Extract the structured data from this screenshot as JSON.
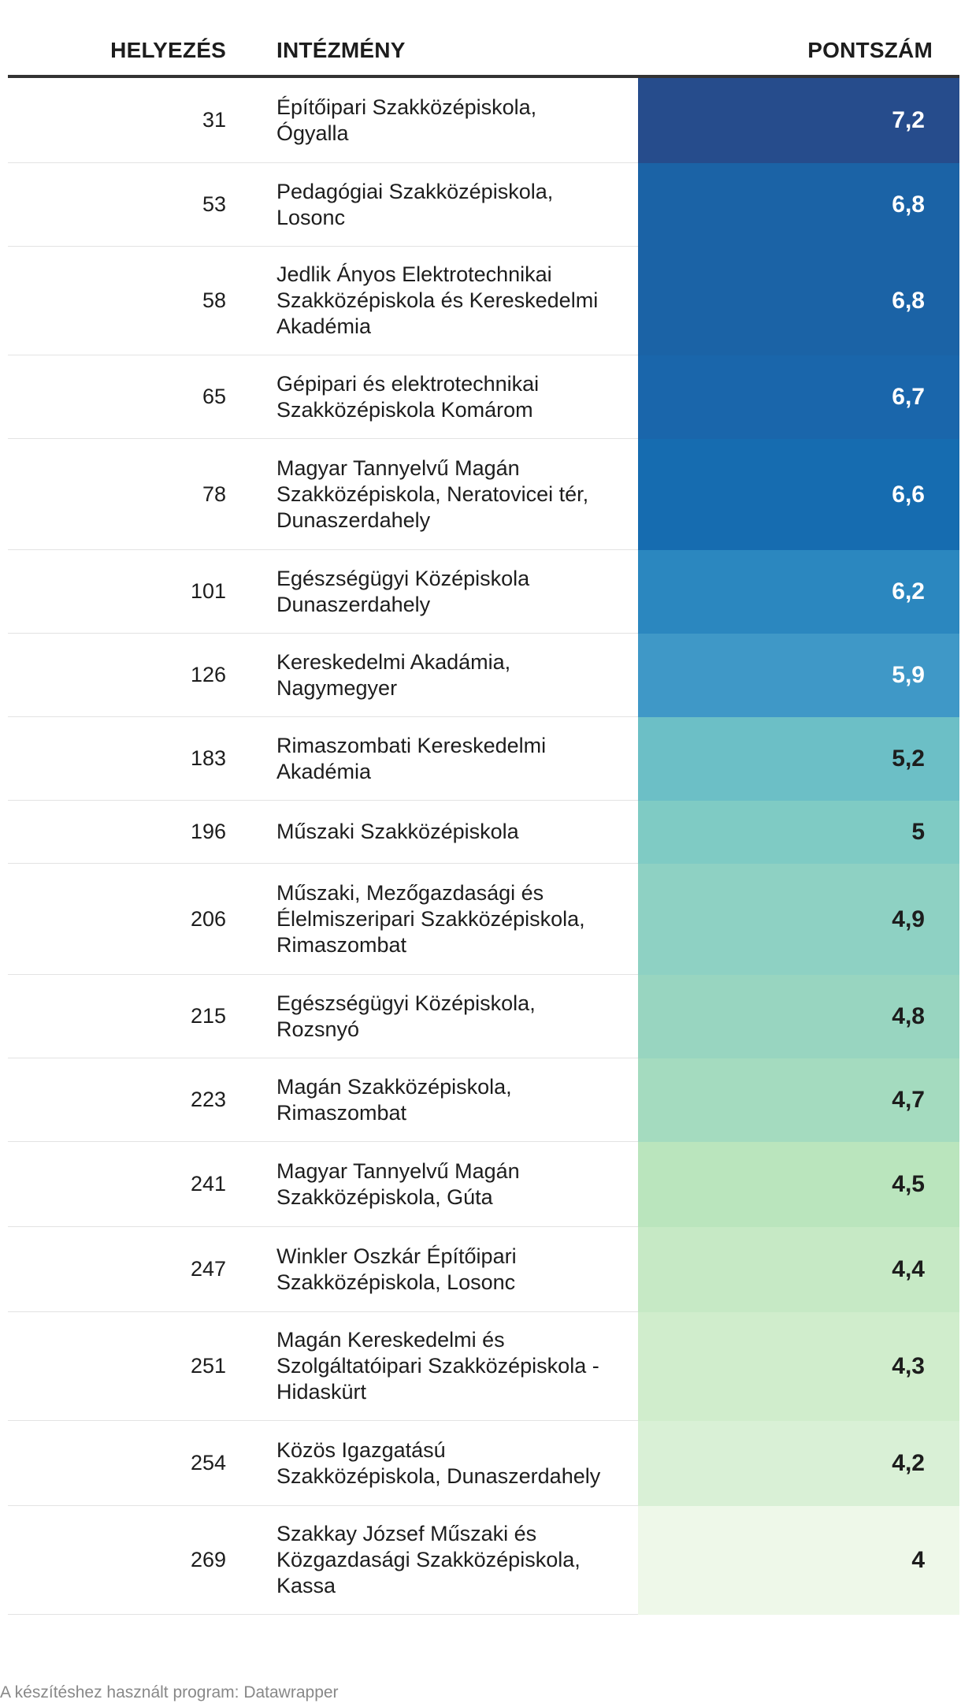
{
  "table": {
    "headers": {
      "rank": "HELYEZÉS",
      "institution": "INTÉZMÉNY",
      "score": "PONTSZÁM"
    },
    "rows": [
      {
        "rank": "31",
        "institution": [
          "Építőipari Szakközépiskola,",
          "Ógyalla"
        ],
        "score": "7,2",
        "bg": "#264c8c",
        "fg": "#ffffff"
      },
      {
        "rank": "53",
        "institution": [
          "Pedagógiai Szakközépiskola,",
          "Losonc"
        ],
        "score": "6,8",
        "bg": "#1b63a6",
        "fg": "#ffffff"
      },
      {
        "rank": "58",
        "institution": [
          "Jedlik Ányos Elektrotechnikai",
          "Szakközépiskola és Kereskedelmi",
          "Akadémia"
        ],
        "score": "6,8",
        "bg": "#1b63a6",
        "fg": "#ffffff"
      },
      {
        "rank": "65",
        "institution": [
          "Gépipari és elektrotechnikai",
          "Szakközépiskola Komárom"
        ],
        "score": "6,7",
        "bg": "#1a66ab",
        "fg": "#ffffff"
      },
      {
        "rank": "78",
        "institution": [
          "Magyar Tannyelvű Magán",
          "Szakközépiskola, Neratovicei tér,",
          "Dunaszerdahely"
        ],
        "score": "6,6",
        "bg": "#166cb0",
        "fg": "#ffffff"
      },
      {
        "rank": "101",
        "institution": [
          "Egészségügyi Középiskola",
          "Dunaszerdahely"
        ],
        "score": "6,2",
        "bg": "#2b87bf",
        "fg": "#ffffff"
      },
      {
        "rank": "126",
        "institution": [
          "Kereskedelmi Akadámia,",
          "Nagymegyer"
        ],
        "score": "5,9",
        "bg": "#3f98c7",
        "fg": "#ffffff"
      },
      {
        "rank": "183",
        "institution": [
          "Rimaszombati Kereskedelmi",
          "Akadémia"
        ],
        "score": "5,2",
        "bg": "#6cbfc6",
        "fg": "#1d1d1d"
      },
      {
        "rank": "196",
        "institution": [
          "Műszaki Szakközépiskola"
        ],
        "score": "5",
        "bg": "#7fcbc4",
        "fg": "#1d1d1d"
      },
      {
        "rank": "206",
        "institution": [
          "Műszaki, Mezőgazdasági és",
          "Élelmiszeripari Szakközépiskola,",
          "Rimaszombat"
        ],
        "score": "4,9",
        "bg": "#8ed1c3",
        "fg": "#1d1d1d"
      },
      {
        "rank": "215",
        "institution": [
          "Egészségügyi Középiskola,",
          "Rozsnyó"
        ],
        "score": "4,8",
        "bg": "#98d5c0",
        "fg": "#1d1d1d"
      },
      {
        "rank": "223",
        "institution": [
          "Magán Szakközépiskola,",
          "Rimaszombat"
        ],
        "score": "4,7",
        "bg": "#a4dbbf",
        "fg": "#1d1d1d"
      },
      {
        "rank": "241",
        "institution": [
          "Magyar Tannyelvű Magán",
          "Szakközépiskola, Gúta"
        ],
        "score": "4,5",
        "bg": "#bae5bd",
        "fg": "#1d1d1d"
      },
      {
        "rank": "247",
        "institution": [
          "Winkler Oszkár Építőipari",
          "Szakközépiskola, Losonc"
        ],
        "score": "4,4",
        "bg": "#c6e9c5",
        "fg": "#1d1d1d"
      },
      {
        "rank": "251",
        "institution": [
          "Magán Kereskedelmi és",
          "Szolgáltatóipari Szakközépiskola -",
          "Hidaskürt"
        ],
        "score": "4,3",
        "bg": "#d0edcc",
        "fg": "#1d1d1d"
      },
      {
        "rank": "254",
        "institution": [
          "Közös Igazgatású",
          "Szakközépiskola, Dunaszerdahely"
        ],
        "score": "4,2",
        "bg": "#d9f0d6",
        "fg": "#1d1d1d"
      },
      {
        "rank": "269",
        "institution": [
          "Szakkay József Műszaki és",
          "Közgazdasági Szakközépiskola,",
          "Kassa"
        ],
        "score": "4",
        "bg": "#eef8e9",
        "fg": "#1d1d1d"
      }
    ]
  },
  "chart_data": {
    "type": "table",
    "title": "",
    "columns": [
      "HELYEZÉS",
      "INTÉZMÉNY",
      "PONTSZÁM"
    ],
    "categories": [
      "Építőipari Szakközépiskola, Ógyalla",
      "Pedagógiai Szakközépiskola, Losonc",
      "Jedlik Ányos Elektrotechnikai Szakközépiskola és Kereskedelmi Akadémia",
      "Gépipari és elektrotechnikai Szakközépiskola Komárom",
      "Magyar Tannyelvű Magán Szakközépiskola, Neratovicei tér, Dunaszerdahely",
      "Egészségügyi Középiskola Dunaszerdahely",
      "Kereskedelmi Akadámia, Nagymegyer",
      "Rimaszombati Kereskedelmi Akadémia",
      "Műszaki Szakközépiskola",
      "Műszaki, Mezőgazdasági és Élelmiszeripari Szakközépiskola, Rimaszombat",
      "Egészségügyi Középiskola, Rozsnyó",
      "Magán Szakközépiskola, Rimaszombat",
      "Magyar Tannyelvű Magán Szakközépiskola, Gúta",
      "Winkler Oszkár Építőipari Szakközépiskola, Losonc",
      "Magán Kereskedelmi és Szolgáltatóipari Szakközépiskola - Hidaskürt",
      "Közös Igazgatású Szakközépiskola, Dunaszerdahely",
      "Szakkay József Műszaki és Közgazdasági Szakközépiskola, Kassa"
    ],
    "ranks": [
      31,
      53,
      58,
      65,
      78,
      101,
      126,
      183,
      196,
      206,
      215,
      223,
      241,
      247,
      251,
      254,
      269
    ],
    "values": [
      7.2,
      6.8,
      6.8,
      6.7,
      6.6,
      6.2,
      5.9,
      5.2,
      5.0,
      4.9,
      4.8,
      4.7,
      4.5,
      4.4,
      4.3,
      4.2,
      4.0
    ]
  },
  "footer": {
    "credit": "A készítéshez használt program: Datawrapper"
  }
}
